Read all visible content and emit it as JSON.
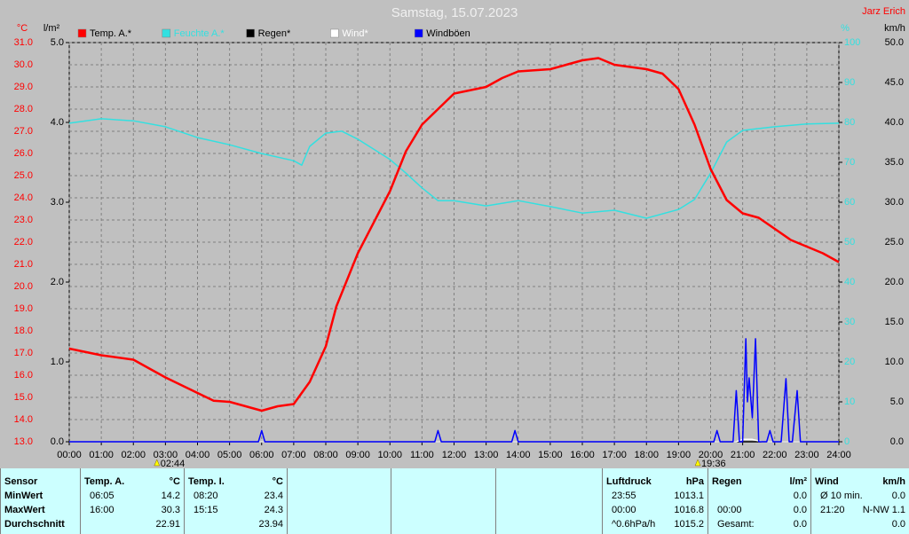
{
  "chart_data": {
    "type": "line",
    "title": "Samstag, 15.07.2023",
    "author": "Jarz Erich",
    "y_label": "°C",
    "y3_label": "l/m²",
    "y2_label": "%",
    "y4_label": "km/h",
    "xlim": [
      0,
      24
    ],
    "xticks": [
      {
        "value": 0,
        "label": "00:00"
      },
      {
        "value": 1,
        "label": "01:00"
      },
      {
        "value": 2,
        "label": "02:00"
      },
      {
        "value": 3,
        "label": "03:00"
      },
      {
        "value": 4,
        "label": "04:00"
      },
      {
        "value": 5,
        "label": "05:00"
      },
      {
        "value": 6,
        "label": "06:00"
      },
      {
        "value": 7,
        "label": "07:00"
      },
      {
        "value": 8,
        "label": "08:00"
      },
      {
        "value": 9,
        "label": "09:00"
      },
      {
        "value": 10,
        "label": "10:00"
      },
      {
        "value": 11,
        "label": "11:00"
      },
      {
        "value": 12,
        "label": "12:00"
      },
      {
        "value": 13,
        "label": "13:00"
      },
      {
        "value": 14,
        "label": "14:00"
      },
      {
        "value": 15,
        "label": "15:00"
      },
      {
        "value": 16,
        "label": "16:00"
      },
      {
        "value": 17,
        "label": "17:00"
      },
      {
        "value": 18,
        "label": "18:00"
      },
      {
        "value": 19,
        "label": "19:00"
      },
      {
        "value": 20,
        "label": "20:00"
      },
      {
        "value": 21,
        "label": "21:00"
      },
      {
        "value": 22,
        "label": "22:00"
      },
      {
        "value": 23,
        "label": "23:00"
      },
      {
        "value": 24,
        "label": "24:00"
      }
    ],
    "ylim": [
      13,
      31
    ],
    "yticks": [
      {
        "value": 13,
        "label": "13.0"
      },
      {
        "value": 14,
        "label": "14.0"
      },
      {
        "value": 15,
        "label": "15.0"
      },
      {
        "value": 16,
        "label": "16.0"
      },
      {
        "value": 17,
        "label": "17.0"
      },
      {
        "value": 18,
        "label": "18.0"
      },
      {
        "value": 19,
        "label": "19.0"
      },
      {
        "value": 20,
        "label": "20.0"
      },
      {
        "value": 21,
        "label": "21.0"
      },
      {
        "value": 22,
        "label": "22.0"
      },
      {
        "value": 23,
        "label": "23.0"
      },
      {
        "value": 24,
        "label": "24.0"
      },
      {
        "value": 25,
        "label": "25.0"
      },
      {
        "value": 26,
        "label": "26.0"
      },
      {
        "value": 27,
        "label": "27.0"
      },
      {
        "value": 28,
        "label": "28.0"
      },
      {
        "value": 29,
        "label": "29.0"
      },
      {
        "value": 30,
        "label": "30.0"
      },
      {
        "value": 31,
        "label": "31.0"
      }
    ],
    "y3lim": [
      0,
      5
    ],
    "y3ticks": [
      {
        "value": 0,
        "label": "0.0"
      },
      {
        "value": 1,
        "label": "1.0"
      },
      {
        "value": 2,
        "label": "2.0"
      },
      {
        "value": 3,
        "label": "3.0"
      },
      {
        "value": 4,
        "label": "4.0"
      },
      {
        "value": 5,
        "label": "5.0"
      }
    ],
    "y2lim": [
      0,
      100
    ],
    "y2ticks": [
      0,
      10,
      20,
      30,
      40,
      50,
      60,
      70,
      80,
      90,
      100
    ],
    "y4lim": [
      0,
      50
    ],
    "y4ticks": [
      {
        "value": 0,
        "label": "0.0"
      },
      {
        "value": 5,
        "label": "5.0"
      },
      {
        "value": 10,
        "label": "10.0"
      },
      {
        "value": 15,
        "label": "15.0"
      },
      {
        "value": 20,
        "label": "20.0"
      },
      {
        "value": 25,
        "label": "25.0"
      },
      {
        "value": 30,
        "label": "30.0"
      },
      {
        "value": 35,
        "label": "35.0"
      },
      {
        "value": 40,
        "label": "40.0"
      },
      {
        "value": 45,
        "label": "45.0"
      },
      {
        "value": 50,
        "label": "50.0"
      }
    ],
    "grid": true,
    "annotations": [
      {
        "x": 2.733,
        "label": "02:44"
      },
      {
        "x": 19.6,
        "label": "19:36"
      }
    ],
    "series": [
      {
        "name": "Temp. A.*",
        "color": "#ff0000",
        "axis": "y",
        "x": [
          0,
          1,
          2,
          2.5,
          3,
          4,
          4.5,
          5,
          6,
          6.5,
          7,
          7.5,
          8,
          8.33,
          9,
          10,
          10.5,
          11,
          11.5,
          12,
          13,
          13.5,
          14,
          15,
          15.5,
          16,
          16.5,
          17,
          18,
          18.5,
          19,
          19.5,
          20,
          20.5,
          21,
          21.5,
          22,
          22.5,
          23,
          23.5,
          24
        ],
        "values": [
          17.2,
          16.9,
          16.7,
          16.3,
          15.9,
          15.2,
          14.85,
          14.8,
          14.4,
          14.6,
          14.7,
          15.7,
          17.3,
          19.1,
          21.5,
          24.3,
          26.1,
          27.3,
          28.0,
          28.7,
          29.0,
          29.4,
          29.7,
          29.8,
          30.0,
          30.2,
          30.3,
          30.0,
          29.8,
          29.6,
          28.9,
          27.3,
          25.3,
          23.9,
          23.3,
          23.1,
          22.6,
          22.1,
          21.8,
          21.5,
          21.1
        ]
      },
      {
        "name": "Feuchte A.*",
        "color": "#33e0e0",
        "axis": "y2",
        "x": [
          0,
          1,
          2,
          3,
          4,
          5,
          6,
          7,
          7.25,
          7.5,
          8,
          8.5,
          9,
          10,
          10.5,
          11,
          11.5,
          12,
          13,
          14,
          15,
          16,
          17,
          18,
          19,
          19.5,
          20,
          20.5,
          21,
          22,
          23,
          24
        ],
        "values": [
          79.8,
          80.9,
          80.4,
          78.9,
          76.2,
          74.4,
          72.2,
          70.4,
          69.3,
          74,
          77.3,
          77.8,
          75.8,
          70.7,
          67.3,
          63.6,
          60.4,
          60.4,
          59.1,
          60.4,
          58.9,
          57.3,
          58,
          56,
          58.2,
          60.7,
          67.3,
          75.1,
          78,
          78.9,
          79.6,
          79.8
        ]
      },
      {
        "name": "Regen*",
        "color": "#000000",
        "axis": "y3",
        "x": [
          0,
          24
        ],
        "values": [
          0,
          0
        ]
      },
      {
        "name": "Wind*",
        "color": "#ffffff",
        "axis": "y4",
        "x": [
          0,
          20.8,
          21,
          21.3,
          21.6,
          24
        ],
        "values": [
          0,
          0,
          0.3,
          0.3,
          0,
          0
        ]
      },
      {
        "name": "Windböen",
        "color": "#0000ff",
        "axis": "y4",
        "x": [
          0,
          5.9,
          6,
          6.1,
          11.4,
          11.5,
          11.6,
          13.8,
          13.9,
          14,
          20.1,
          20.2,
          20.3,
          20.7,
          20.8,
          20.9,
          21,
          21.1,
          21.15,
          21.2,
          21.3,
          21.4,
          21.5,
          21.6,
          21.75,
          21.85,
          21.95,
          22.2,
          22.35,
          22.45,
          22.55,
          22.7,
          22.8,
          24
        ],
        "values": [
          0,
          0,
          1.4,
          0,
          0,
          1.4,
          0,
          0,
          1.4,
          0,
          0,
          1.4,
          0,
          0,
          6.4,
          0,
          0,
          12.9,
          5,
          8,
          3,
          12.9,
          0,
          0,
          0,
          1.4,
          0,
          0,
          7.9,
          0,
          0,
          6.4,
          0,
          0
        ]
      }
    ]
  },
  "table": {
    "sensor": {
      "header": "Sensor",
      "rows": [
        "MinWert",
        "MaxWert",
        "Durchschnitt"
      ]
    },
    "temp_a": {
      "header": "Temp. A.",
      "unit": "°C",
      "min": {
        "time": "06:05",
        "value": "14.2"
      },
      "max": {
        "time": "16:00",
        "value": "30.3"
      },
      "avg": {
        "value": "22.91"
      }
    },
    "temp_i": {
      "header": "Temp. I.",
      "unit": "°C",
      "min": {
        "time": "08:20",
        "value": "23.4"
      },
      "max": {
        "time": "15:15",
        "value": "24.3"
      },
      "avg": {
        "value": "23.94"
      }
    },
    "pressure": {
      "header": "Luftdruck",
      "unit": "hPa",
      "min": {
        "time": "23:55",
        "value": "1013.1"
      },
      "max": {
        "time": "00:00",
        "value": "1016.8"
      },
      "avg": {
        "time": "^0.6hPa/h",
        "value": "1015.2"
      }
    },
    "rain": {
      "header": "Regen",
      "unit": "l/m²",
      "min": {
        "value": "0.0"
      },
      "max": {
        "time": "00:00",
        "value": "0.0"
      },
      "avg": {
        "time": "Gesamt:",
        "value": "0.0"
      }
    },
    "wind": {
      "header": "Wind",
      "unit": "km/h",
      "min": {
        "time": "Ø 10 min.",
        "value": "0.0"
      },
      "max": {
        "time": "21:20",
        "value": "N-NW 1.1"
      },
      "avg": {
        "value": "0.0"
      }
    }
  }
}
